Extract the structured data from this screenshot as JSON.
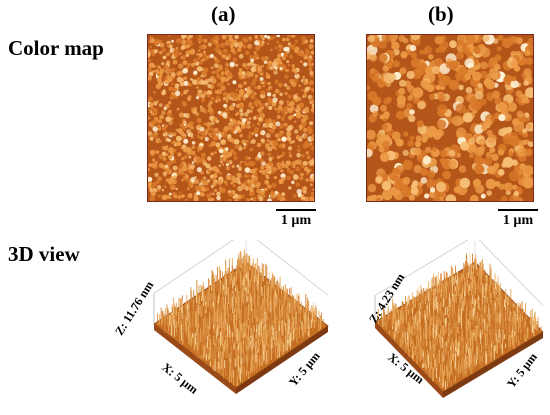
{
  "row_labels": {
    "color_map": "Color map",
    "view_3d": "3D view"
  },
  "panels": [
    {
      "label": "(a)",
      "scale_bar": "1 µm",
      "z_label": "Z: 11.76 nm",
      "x_label": "X: 5 µm",
      "y_label": "Y: 5 µm"
    },
    {
      "label": "(b)",
      "scale_bar": "1 µm",
      "z_label": "Z: 4.23 nm",
      "x_label": "X: 5 µm",
      "y_label": "Y: 5 µm"
    }
  ],
  "colors": {
    "base": "#c8631a",
    "grain": "#f0a24a",
    "highlight": "#fff4d8",
    "frame": "#7a2a1a"
  }
}
